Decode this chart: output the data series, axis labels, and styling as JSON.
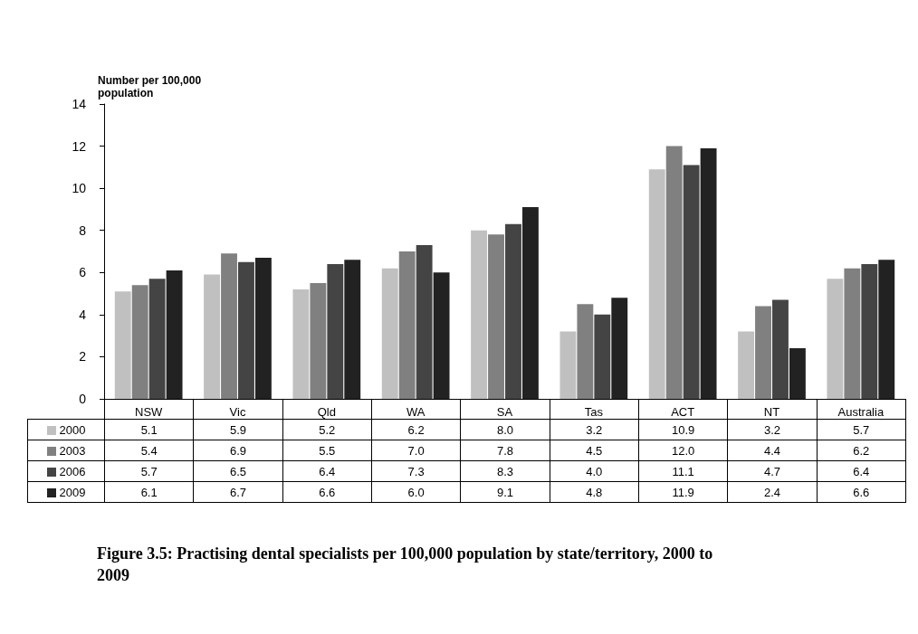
{
  "chart_data": {
    "type": "bar",
    "title": "Figure 3.5: Practising dental specialists per 100,000 population by state/territory, 2000 to 2009",
    "ylabel": "Number per 100,000 population",
    "categories": [
      "NSW",
      "Vic",
      "Qld",
      "WA",
      "SA",
      "Tas",
      "ACT",
      "NT",
      "Australia"
    ],
    "series": [
      {
        "name": "2000",
        "color": "#c0c0c0",
        "values": [
          5.1,
          5.9,
          5.2,
          6.2,
          8.0,
          3.2,
          10.9,
          3.2,
          5.7
        ],
        "value_labels": [
          "5.1",
          "5.9",
          "5.2",
          "6.2",
          "8.0",
          "3.2",
          "10.9",
          "3.2",
          "5.7"
        ]
      },
      {
        "name": "2003",
        "color": "#808080",
        "values": [
          5.4,
          6.9,
          5.5,
          7.0,
          7.8,
          4.5,
          12.0,
          4.4,
          6.2
        ],
        "value_labels": [
          "5.4",
          "6.9",
          "5.5",
          "7.0",
          "7.8",
          "4.5",
          "12.0",
          "4.4",
          "6.2"
        ]
      },
      {
        "name": "2006",
        "color": "#444444",
        "values": [
          5.7,
          6.5,
          6.4,
          7.3,
          8.3,
          4.0,
          11.1,
          4.7,
          6.4
        ],
        "value_labels": [
          "5.7",
          "6.5",
          "6.4",
          "7.3",
          "8.3",
          "4.0",
          "11.1",
          "4.7",
          "6.4"
        ]
      },
      {
        "name": "2009",
        "color": "#222222",
        "values": [
          6.1,
          6.7,
          6.6,
          6.0,
          9.1,
          4.8,
          11.9,
          2.4,
          6.6
        ],
        "value_labels": [
          "6.1",
          "6.7",
          "6.6",
          "6.0",
          "9.1",
          "4.8",
          "11.9",
          "2.4",
          "6.6"
        ]
      }
    ],
    "ylim": [
      0,
      14
    ],
    "yticks": [
      0,
      2,
      4,
      6,
      8,
      10,
      12,
      14
    ],
    "grid": false,
    "legend": "bottom"
  }
}
